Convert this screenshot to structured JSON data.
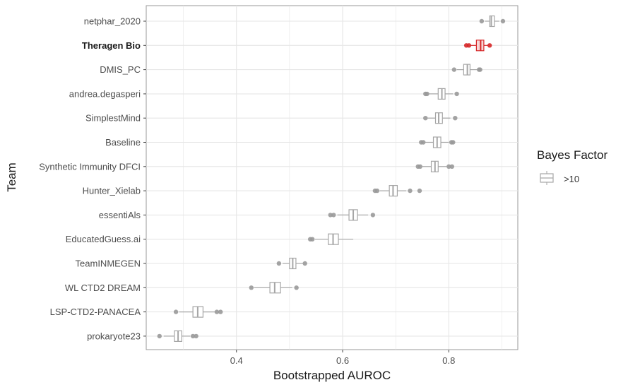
{
  "chart_data": {
    "type": "boxplot",
    "xlabel": "Bootstrapped AUROC",
    "ylabel": "Team",
    "xlim": [
      0.23,
      0.93
    ],
    "x_ticks": [
      0.4,
      0.6,
      0.8
    ],
    "x_tick_labels": [
      "0.4",
      "0.6",
      "0.8"
    ],
    "grid": true,
    "legend": {
      "title": "Bayes Factor",
      "entries": [
        ">10"
      ],
      "placement": "right"
    },
    "colors": {
      "default_box": "#a6a6a6",
      "highlight_box": "#d62728",
      "outlier_default": "#999999",
      "outlier_highlight": "#d62728",
      "grid": "#e6e6e6"
    },
    "teams": [
      {
        "name": "netphar_2020",
        "bold": false,
        "highlight": false,
        "q1": 0.877,
        "median": 0.88,
        "q3": 0.886,
        "whisker_low": 0.868,
        "whisker_high": 0.895,
        "outliers": [
          0.862,
          0.902
        ]
      },
      {
        "name": "Theragen Bio",
        "bold": true,
        "highlight": true,
        "q1": 0.852,
        "median": 0.86,
        "q3": 0.866,
        "whisker_low": 0.84,
        "whisker_high": 0.874,
        "outliers": [
          0.833,
          0.838,
          0.877
        ]
      },
      {
        "name": "DMIS_PC",
        "bold": false,
        "highlight": false,
        "q1": 0.828,
        "median": 0.835,
        "q3": 0.84,
        "whisker_low": 0.815,
        "whisker_high": 0.853,
        "outliers": [
          0.81,
          0.857,
          0.859
        ]
      },
      {
        "name": "andrea.degasperi",
        "bold": false,
        "highlight": false,
        "q1": 0.78,
        "median": 0.787,
        "q3": 0.793,
        "whisker_low": 0.763,
        "whisker_high": 0.808,
        "outliers": [
          0.756,
          0.759,
          0.815
        ]
      },
      {
        "name": "SimplestMind",
        "bold": false,
        "highlight": false,
        "q1": 0.775,
        "median": 0.781,
        "q3": 0.788,
        "whisker_low": 0.76,
        "whisker_high": 0.803,
        "outliers": [
          0.756,
          0.812
        ]
      },
      {
        "name": "Baseline",
        "bold": false,
        "highlight": false,
        "q1": 0.771,
        "median": 0.778,
        "q3": 0.785,
        "whisker_low": 0.755,
        "whisker_high": 0.8,
        "outliers": [
          0.748,
          0.752,
          0.805,
          0.808
        ]
      },
      {
        "name": "Synthetic Immunity DFCI",
        "bold": false,
        "highlight": false,
        "q1": 0.767,
        "median": 0.774,
        "q3": 0.78,
        "whisker_low": 0.75,
        "whisker_high": 0.796,
        "outliers": [
          0.742,
          0.746,
          0.8,
          0.806
        ]
      },
      {
        "name": "Hunter_Xielab",
        "bold": false,
        "highlight": false,
        "q1": 0.688,
        "median": 0.695,
        "q3": 0.703,
        "whisker_low": 0.67,
        "whisker_high": 0.72,
        "outliers": [
          0.661,
          0.665,
          0.727,
          0.745
        ]
      },
      {
        "name": "essentiAls",
        "bold": false,
        "highlight": false,
        "q1": 0.612,
        "median": 0.62,
        "q3": 0.628,
        "whisker_low": 0.59,
        "whisker_high": 0.648,
        "outliers": [
          0.577,
          0.583,
          0.657
        ]
      },
      {
        "name": "EducatedGuess.ai",
        "bold": false,
        "highlight": false,
        "q1": 0.573,
        "median": 0.582,
        "q3": 0.592,
        "whisker_low": 0.548,
        "whisker_high": 0.62,
        "outliers": [
          0.539,
          0.543
        ]
      },
      {
        "name": "TeamINMEGEN",
        "bold": false,
        "highlight": false,
        "q1": 0.5,
        "median": 0.506,
        "q3": 0.512,
        "whisker_low": 0.487,
        "whisker_high": 0.525,
        "outliers": [
          0.48,
          0.529
        ]
      },
      {
        "name": "WL CTD2 DREAM",
        "bold": false,
        "highlight": false,
        "q1": 0.463,
        "median": 0.472,
        "q3": 0.483,
        "whisker_low": 0.433,
        "whisker_high": 0.505,
        "outliers": [
          0.428,
          0.513
        ]
      },
      {
        "name": "LSP-CTD2-PANACEA",
        "bold": false,
        "highlight": false,
        "q1": 0.318,
        "median": 0.327,
        "q3": 0.337,
        "whisker_low": 0.292,
        "whisker_high": 0.36,
        "outliers": [
          0.286,
          0.363,
          0.37
        ]
      },
      {
        "name": "prokaryote23",
        "bold": false,
        "highlight": false,
        "q1": 0.283,
        "median": 0.29,
        "q3": 0.297,
        "whisker_low": 0.263,
        "whisker_high": 0.313,
        "outliers": [
          0.255,
          0.318,
          0.324
        ]
      }
    ]
  }
}
